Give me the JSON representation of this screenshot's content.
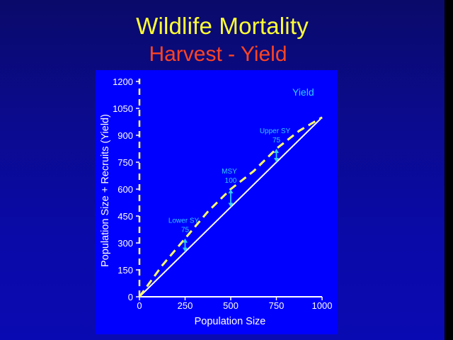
{
  "slide": {
    "title": "Wildlife Mortality",
    "subtitle": "Harvest - Yield"
  },
  "colors": {
    "title": "#ffff33",
    "subtitle": "#ff4422",
    "panel": "#0000ff",
    "yield_curve": "#ffff66",
    "replacement_line": "#ffffff",
    "annotation": "#33ccff"
  },
  "chart_data": {
    "type": "line",
    "xlabel": "Population Size",
    "ylabel": "Population Size + Recruits (Yield)",
    "xlim": [
      0,
      1000
    ],
    "ylim": [
      0,
      1200
    ],
    "x_ticks": [
      0,
      250,
      500,
      750,
      1000
    ],
    "y_ticks": [
      0,
      150,
      300,
      450,
      600,
      750,
      900,
      1050,
      1200
    ],
    "legend": {
      "label": "Yield",
      "placement": "top-right"
    },
    "series": [
      {
        "style": "solid",
        "x": [
          0,
          1000
        ],
        "y": [
          0,
          1000
        ]
      },
      {
        "style": "dashed",
        "x": [
          0,
          125,
          250,
          375,
          500,
          625,
          750,
          875,
          1000
        ],
        "y": [
          0,
          175,
          325,
          475,
          600,
          700,
          825,
          925,
          1000
        ]
      }
    ],
    "annotations": [
      {
        "label": "Lower SY",
        "value": "75",
        "x": 250,
        "y_from": 250,
        "y_to": 325
      },
      {
        "label": "MSY",
        "value": "100",
        "x": 500,
        "y_from": 500,
        "y_to": 600
      },
      {
        "label": "Upper SY",
        "value": "75",
        "x": 750,
        "y_from": 750,
        "y_to": 825
      }
    ]
  }
}
